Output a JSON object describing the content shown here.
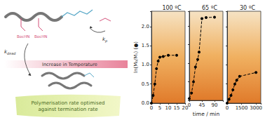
{
  "scheme": {
    "group_label": "BocHN",
    "propagation": {
      "symbol": "k",
      "subscript": "p"
    },
    "termination": {
      "symbol": "k",
      "subscript": "dead"
    },
    "arrow_label": "Increase in Temperature",
    "caption": [
      "Polymerisation rate optimised",
      "against termination rate"
    ]
  },
  "chart_data": [
    {
      "type": "line",
      "title": "100 ºC",
      "ylabel": "ln(M₀/Mₜ) (●)",
      "x": [
        0,
        1,
        2,
        3,
        4,
        5,
        7,
        10,
        15
      ],
      "values": [
        0,
        0.2,
        0.5,
        0.9,
        1.1,
        1.2,
        1.22,
        1.25,
        1.25
      ],
      "color": "#000000",
      "marker": "circle",
      "line_style": "dashed",
      "xlim": [
        0,
        20
      ],
      "xticks": [
        0,
        5,
        10,
        15,
        20
      ],
      "ylim": [
        0,
        2.4
      ],
      "yticks": [
        {
          "value": 0,
          "label": "0.0"
        },
        {
          "value": 0.5,
          "label": "0.5"
        },
        {
          "value": 1,
          "label": "1.0"
        },
        {
          "value": 1.5,
          "label": "1.5"
        },
        {
          "value": 2,
          "label": "2.0"
        }
      ],
      "grid": false
    },
    {
      "type": "line",
      "title": "65 ºC",
      "xlabel": "time / min",
      "x": [
        0,
        8,
        15,
        22,
        30,
        35,
        45,
        60,
        90
      ],
      "values": [
        0.05,
        0.2,
        0.5,
        0.9,
        1.1,
        1.3,
        2.2,
        2.23,
        2.24
      ],
      "color": "#000000",
      "marker": "circle",
      "line_style": "dashed",
      "xlim": [
        0,
        120
      ],
      "xticks": [
        0,
        45,
        90
      ],
      "ylim": [
        0,
        2.4
      ],
      "yticks": [
        0,
        0.5,
        1,
        1.5,
        2
      ],
      "tick_labels": "x",
      "grid": false
    },
    {
      "type": "line",
      "title": "30 ºC",
      "x": [
        0,
        200,
        400,
        600,
        800,
        1000,
        1300,
        3000
      ],
      "values": [
        0,
        0.1,
        0.2,
        0.35,
        0.5,
        0.6,
        0.7,
        0.8
      ],
      "color": "#000000",
      "marker": "circle",
      "line_style": "dashed",
      "xlim": [
        0,
        3500
      ],
      "xticks": [
        0,
        1500,
        3000
      ],
      "ylim": [
        0,
        2.4
      ],
      "yticks": [
        0,
        0.5,
        1,
        1.5,
        2
      ],
      "tick_labels": "x",
      "grid": false
    }
  ]
}
